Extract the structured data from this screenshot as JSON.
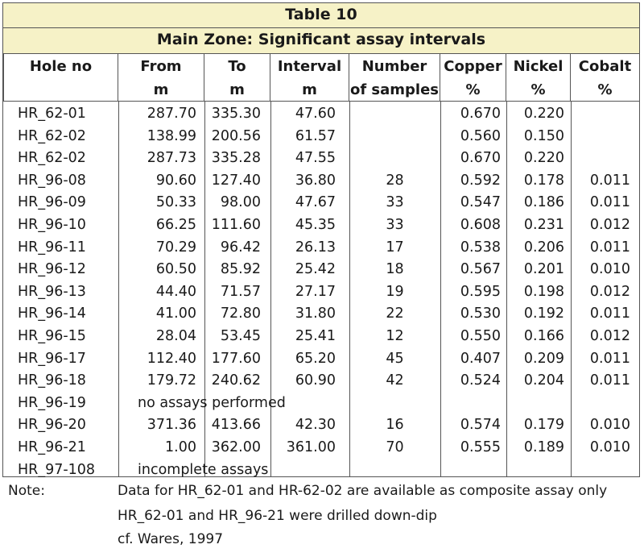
{
  "table_title": "Table 10",
  "table_subtitle": "Main Zone: Significant assay intervals",
  "headers": [
    {
      "line1": "Hole no",
      "line2": ""
    },
    {
      "line1": "From",
      "line2": "m"
    },
    {
      "line1": "To",
      "line2": "m"
    },
    {
      "line1": "Interval",
      "line2": "m"
    },
    {
      "line1": "Number",
      "line2": "of samples"
    },
    {
      "line1": "Copper",
      "line2": "%"
    },
    {
      "line1": "Nickel",
      "line2": "%"
    },
    {
      "line1": "Cobalt",
      "line2": "%"
    }
  ],
  "rows": [
    {
      "hole": "HR_62-01",
      "from": "287.70",
      "to": "335.30",
      "interval": "47.60",
      "samples": "",
      "copper": "0.670",
      "nickel": "0.220",
      "cobalt": "",
      "note": ""
    },
    {
      "hole": "HR_62-02",
      "from": "138.99",
      "to": "200.56",
      "interval": "61.57",
      "samples": "",
      "copper": "0.560",
      "nickel": "0.150",
      "cobalt": "",
      "note": ""
    },
    {
      "hole": "HR_62-02",
      "from": "287.73",
      "to": "335.28",
      "interval": "47.55",
      "samples": "",
      "copper": "0.670",
      "nickel": "0.220",
      "cobalt": "",
      "note": ""
    },
    {
      "hole": "HR_96-08",
      "from": "90.60",
      "to": "127.40",
      "interval": "36.80",
      "samples": "28",
      "copper": "0.592",
      "nickel": "0.178",
      "cobalt": "0.011",
      "note": ""
    },
    {
      "hole": "HR_96-09",
      "from": "50.33",
      "to": "98.00",
      "interval": "47.67",
      "samples": "33",
      "copper": "0.547",
      "nickel": "0.186",
      "cobalt": "0.011",
      "note": ""
    },
    {
      "hole": "HR_96-10",
      "from": "66.25",
      "to": "111.60",
      "interval": "45.35",
      "samples": "33",
      "copper": "0.608",
      "nickel": "0.231",
      "cobalt": "0.012",
      "note": ""
    },
    {
      "hole": "HR_96-11",
      "from": "70.29",
      "to": "96.42",
      "interval": "26.13",
      "samples": "17",
      "copper": "0.538",
      "nickel": "0.206",
      "cobalt": "0.011",
      "note": ""
    },
    {
      "hole": "HR_96-12",
      "from": "60.50",
      "to": "85.92",
      "interval": "25.42",
      "samples": "18",
      "copper": "0.567",
      "nickel": "0.201",
      "cobalt": "0.010",
      "note": ""
    },
    {
      "hole": "HR_96-13",
      "from": "44.40",
      "to": "71.57",
      "interval": "27.17",
      "samples": "19",
      "copper": "0.595",
      "nickel": "0.198",
      "cobalt": "0.012",
      "note": ""
    },
    {
      "hole": "HR_96-14",
      "from": "41.00",
      "to": "72.80",
      "interval": "31.80",
      "samples": "22",
      "copper": "0.530",
      "nickel": "0.192",
      "cobalt": "0.011",
      "note": ""
    },
    {
      "hole": "HR_96-15",
      "from": "28.04",
      "to": "53.45",
      "interval": "25.41",
      "samples": "12",
      "copper": "0.550",
      "nickel": "0.166",
      "cobalt": "0.012",
      "note": ""
    },
    {
      "hole": "HR_96-17",
      "from": "112.40",
      "to": "177.60",
      "interval": "65.20",
      "samples": "45",
      "copper": "0.407",
      "nickel": "0.209",
      "cobalt": "0.011",
      "note": ""
    },
    {
      "hole": "HR_96-18",
      "from": "179.72",
      "to": "240.62",
      "interval": "60.90",
      "samples": "42",
      "copper": "0.524",
      "nickel": "0.204",
      "cobalt": "0.011",
      "note": ""
    },
    {
      "hole": "HR_96-19",
      "from": "",
      "to": "",
      "interval": "",
      "samples": "",
      "copper": "",
      "nickel": "",
      "cobalt": "",
      "note": "no assays performed"
    },
    {
      "hole": "HR_96-20",
      "from": "371.36",
      "to": "413.66",
      "interval": "42.30",
      "samples": "16",
      "copper": "0.574",
      "nickel": "0.179",
      "cobalt": "0.010",
      "note": ""
    },
    {
      "hole": "HR_96-21",
      "from": "1.00",
      "to": "362.00",
      "interval": "361.00",
      "samples": "70",
      "copper": "0.555",
      "nickel": "0.189",
      "cobalt": "0.010",
      "note": ""
    },
    {
      "hole": "HR_97-108",
      "from": "",
      "to": "",
      "interval": "",
      "samples": "",
      "copper": "",
      "nickel": "",
      "cobalt": "",
      "note": "incomplete assays"
    }
  ],
  "notes": {
    "label": "Note:",
    "lines": [
      "Data for HR_62-01 and HR-62-02 are available as composite assay only",
      "HR_62-01 and HR_96-21 were drilled down-dip",
      "cf. Wares, 1997"
    ]
  },
  "colors": {
    "header_band": "#f6f2c7",
    "border": "#555555"
  }
}
